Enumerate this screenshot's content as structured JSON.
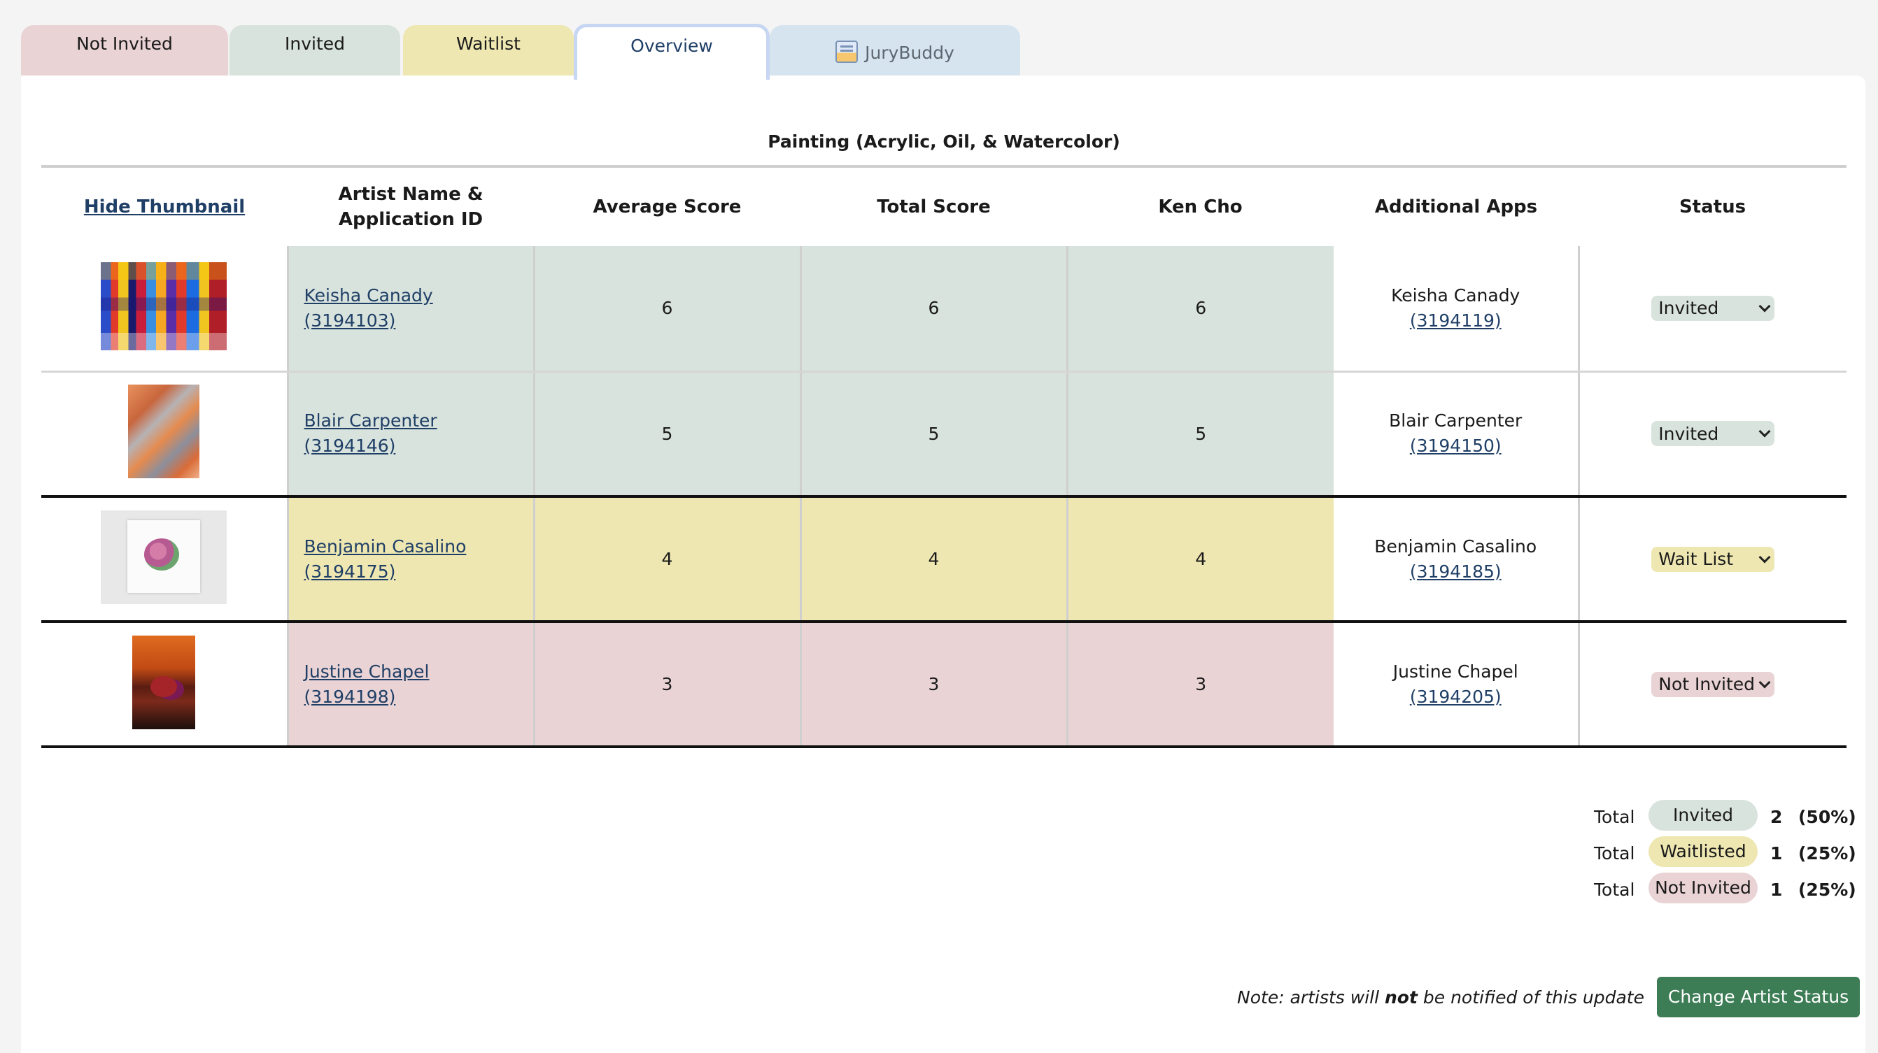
{
  "tabs": {
    "not_invited": "Not Invited",
    "invited": "Invited",
    "waitlist": "Waitlist",
    "overview": "Overview",
    "jurybuddy": "JuryBuddy"
  },
  "category_title": "Painting (Acrylic, Oil, & Watercolor)",
  "table": {
    "headers": {
      "thumbnail": "Hide Thumbnail",
      "artist_line1": "Artist Name &",
      "artist_line2": "Application ID",
      "average": "Average Score",
      "total": "Total Score",
      "juror": "Ken Cho",
      "additional": "Additional Apps",
      "status": "Status"
    },
    "rows": [
      {
        "name": "Keisha Canady",
        "app_id": "(3194103)",
        "average": "6",
        "total": "6",
        "juror": "6",
        "add_name": "Keisha Canady",
        "add_id": "(3194119)",
        "status": "Invited"
      },
      {
        "name": "Blair Carpenter",
        "app_id": "(3194146)",
        "average": "5",
        "total": "5",
        "juror": "5",
        "add_name": "Blair Carpenter",
        "add_id": "(3194150)",
        "status": "Invited"
      },
      {
        "name": "Benjamin Casalino",
        "app_id": "(3194175)",
        "average": "4",
        "total": "4",
        "juror": "4",
        "add_name": "Benjamin Casalino",
        "add_id": "(3194185)",
        "status": "Wait List"
      },
      {
        "name": "Justine Chapel",
        "app_id": "(3194198)",
        "average": "3",
        "total": "3",
        "juror": "3",
        "add_name": "Justine Chapel",
        "add_id": "(3194205)",
        "status": "Not Invited"
      }
    ]
  },
  "totals": [
    {
      "label": "Total",
      "pill": "Invited",
      "count": "2",
      "pct": "(50%)"
    },
    {
      "label": "Total",
      "pill": "Waitlisted",
      "count": "1",
      "pct": "(25%)"
    },
    {
      "label": "Total",
      "pill": "Not Invited",
      "count": "1",
      "pct": "(25%)"
    }
  ],
  "note": {
    "prefix": "Note: artists will ",
    "emphasis": "not",
    "suffix": " be notified of this update"
  },
  "change_button": "Change Artist Status",
  "colors": {
    "invited": "#d9e3dd",
    "waitlist": "#eee7b2",
    "not_invited": "#ead3d5",
    "button": "#3c7d55",
    "link": "#1f3f66"
  }
}
